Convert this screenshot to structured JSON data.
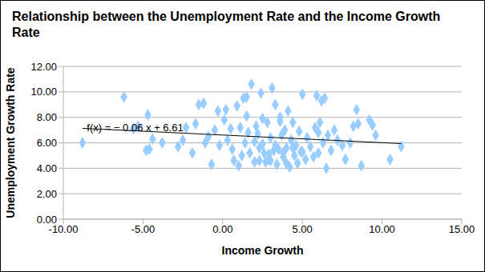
{
  "chart_data": {
    "type": "scatter",
    "title": "Relationship between the Unemployment Rate and the Income Growth Rate",
    "x_label": "Income Growth",
    "y_label": "Unemployment Growth Rate",
    "xlim": [
      -10,
      15
    ],
    "xticks": [
      {
        "value": -10,
        "label": "-10.00"
      },
      {
        "value": -5,
        "label": "-5.00"
      },
      {
        "value": 0,
        "label": "0.00"
      },
      {
        "value": 5,
        "label": "5.00"
      },
      {
        "value": 10,
        "label": "10.00"
      },
      {
        "value": 15,
        "label": "15.00"
      }
    ],
    "ylim": [
      0,
      12
    ],
    "yticks": [
      {
        "value": 0,
        "label": "0.00"
      },
      {
        "value": 2,
        "label": "2.00"
      },
      {
        "value": 4,
        "label": "4.00"
      },
      {
        "value": 6,
        "label": "6.00"
      },
      {
        "value": 8,
        "label": "8.00"
      },
      {
        "value": 10,
        "label": "10.00"
      },
      {
        "value": 12,
        "label": "12.00"
      }
    ],
    "grid": true,
    "color": "#99ccff",
    "marker": "diamond",
    "trendline": {
      "label": "f(x) = − 0.06 x + 6.61",
      "slope": -0.06,
      "intercept": 6.61,
      "color": "#000000"
    },
    "x": [
      -8.8,
      -6.2,
      -5.3,
      -5.6,
      -4.7,
      -4.8,
      -4.6,
      -4.4,
      -3.8,
      -2.8,
      -2.5,
      -2.3,
      -1.9,
      -1.7,
      -1.5,
      -1.2,
      -1.1,
      -0.9,
      -0.7,
      -0.5,
      -0.3,
      -0.2,
      0.2,
      0.3,
      0.5,
      0.6,
      0.7,
      0.9,
      1.0,
      1.1,
      1.3,
      1.4,
      1.5,
      1.6,
      1.7,
      1.8,
      2.0,
      2.1,
      2.2,
      2.3,
      2.4,
      2.5,
      2.6,
      2.7,
      2.8,
      2.9,
      3.0,
      3.1,
      3.2,
      3.3,
      3.4,
      3.5,
      3.6,
      3.7,
      3.8,
      3.9,
      4.0,
      4.1,
      4.2,
      4.3,
      4.4,
      4.5,
      4.6,
      4.7,
      4.8,
      4.9,
      5.0,
      5.2,
      5.3,
      5.5,
      5.7,
      5.8,
      5.9,
      6.0,
      6.1,
      6.2,
      6.3,
      6.4,
      6.5,
      6.6,
      6.8,
      7.0,
      7.2,
      7.5,
      7.7,
      8.0,
      8.2,
      8.4,
      8.5,
      8.7,
      9.2,
      9.4,
      9.6,
      10.5,
      11.2,
      0.1,
      1.2,
      2.3,
      2.9,
      3.3,
      3.8,
      4.4,
      2.0,
      3.0,
      4.0,
      5.0,
      6.0,
      2.5,
      3.6,
      1.5
    ],
    "values": [
      6.0,
      9.6,
      7.3,
      7.1,
      8.2,
      5.4,
      5.5,
      6.3,
      6.0,
      5.7,
      6.2,
      7.2,
      5.2,
      7.5,
      9.0,
      9.1,
      6.0,
      6.5,
      4.3,
      7.0,
      8.5,
      5.8,
      8.6,
      6.2,
      7.1,
      5.5,
      4.6,
      8.9,
      4.2,
      7.2,
      9.5,
      6.0,
      9.6,
      6.8,
      5.2,
      10.6,
      4.5,
      7.3,
      6.7,
      4.6,
      9.9,
      5.9,
      5.2,
      4.5,
      7.6,
      4.7,
      6.4,
      10.3,
      5.4,
      9.0,
      4.3,
      5.5,
      8.0,
      6.6,
      4.9,
      7.0,
      5.6,
      8.5,
      4.1,
      6.2,
      7.6,
      5.0,
      5.8,
      4.4,
      6.9,
      5.3,
      9.8,
      4.7,
      6.4,
      5.7,
      4.9,
      7.2,
      9.7,
      5.2,
      7.6,
      9.3,
      6.0,
      9.5,
      4.0,
      6.6,
      5.4,
      7.0,
      6.2,
      5.8,
      4.7,
      6.0,
      7.3,
      8.6,
      7.5,
      4.2,
      7.8,
      7.4,
      6.6,
      4.7,
      5.7,
      7.8,
      5.0,
      5.6,
      5.1,
      5.8,
      5.2,
      5.6,
      6.1,
      4.6,
      4.4,
      5.3,
      6.8,
      7.9,
      7.7,
      8.1
    ]
  }
}
